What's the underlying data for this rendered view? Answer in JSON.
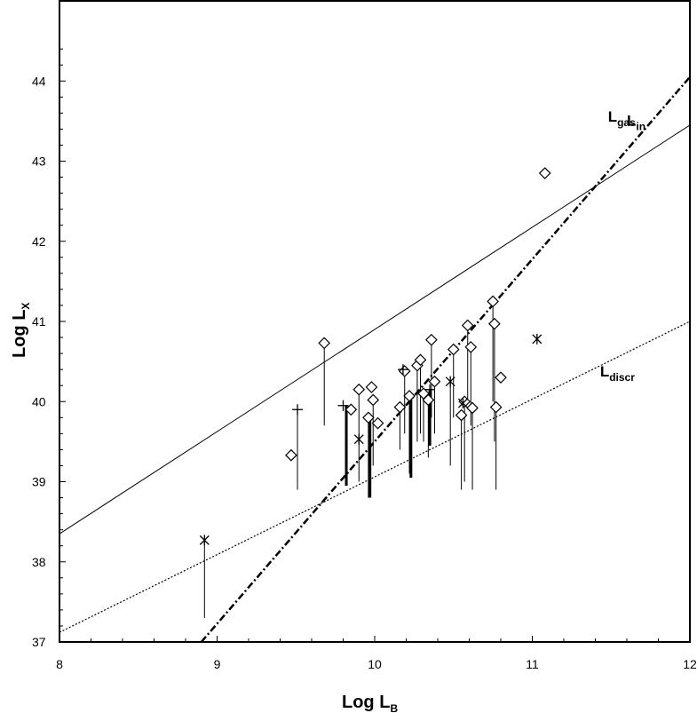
{
  "chart_data": {
    "type": "scatter",
    "xlabel": "Log L",
    "xlabel_sub": "B",
    "ylabel": "Log L",
    "ylabel_sub": "X",
    "xlim": [
      8,
      12
    ],
    "ylim": [
      37,
      45
    ],
    "xticks": [
      "8",
      "9",
      "10",
      "11",
      "12"
    ],
    "yticks": [
      "37",
      "38",
      "39",
      "40",
      "41",
      "42",
      "43",
      "44"
    ],
    "grid": false,
    "lines": [
      {
        "name": "L",
        "sub": "gas",
        "style": "dashdot",
        "points": [
          [
            8.9,
            37.0
          ],
          [
            12.0,
            44.05
          ]
        ]
      },
      {
        "name": "L",
        "sub": "in",
        "style": "solid",
        "points": [
          [
            8.0,
            38.35
          ],
          [
            12.0,
            43.45
          ]
        ]
      },
      {
        "name": "L",
        "sub": "discr",
        "style": "dotted",
        "points": [
          [
            8.0,
            37.12
          ],
          [
            12.0,
            41.0
          ]
        ]
      }
    ],
    "diamonds": [
      {
        "x": 9.47,
        "y": 39.33
      },
      {
        "x": 9.68,
        "y": 40.73,
        "low": 39.7
      },
      {
        "x": 9.85,
        "y": 39.9
      },
      {
        "x": 9.9,
        "y": 40.15,
        "low": 39.0
      },
      {
        "x": 9.96,
        "y": 39.8,
        "low": 38.8
      },
      {
        "x": 9.98,
        "y": 40.18
      },
      {
        "x": 9.99,
        "y": 40.02,
        "low": 39.2
      },
      {
        "x": 10.02,
        "y": 39.73
      },
      {
        "x": 10.16,
        "y": 39.93,
        "low": 39.4
      },
      {
        "x": 10.19,
        "y": 40.38,
        "low": 39.6
      },
      {
        "x": 10.22,
        "y": 40.07,
        "low": 39.1
      },
      {
        "x": 10.27,
        "y": 40.45,
        "low": 39.5
      },
      {
        "x": 10.29,
        "y": 40.52,
        "low": 39.6
      },
      {
        "x": 10.31,
        "y": 40.1,
        "low": 39.5
      },
      {
        "x": 10.34,
        "y": 40.02,
        "low": 39.3
      },
      {
        "x": 10.36,
        "y": 40.77,
        "low": 39.8
      },
      {
        "x": 10.38,
        "y": 40.25,
        "low": 39.6
      },
      {
        "x": 10.5,
        "y": 40.65,
        "low": 39.8
      },
      {
        "x": 10.55,
        "y": 39.83,
        "low": 38.9
      },
      {
        "x": 10.57,
        "y": 40.0,
        "low": 39.0
      },
      {
        "x": 10.59,
        "y": 40.95,
        "low": 40.0
      },
      {
        "x": 10.61,
        "y": 40.68,
        "low": 39.7
      },
      {
        "x": 10.62,
        "y": 39.92,
        "low": 38.9
      },
      {
        "x": 10.75,
        "y": 41.25,
        "low": 40.0
      },
      {
        "x": 10.76,
        "y": 40.97,
        "low": 39.5
      },
      {
        "x": 10.77,
        "y": 39.93,
        "low": 38.9
      },
      {
        "x": 10.8,
        "y": 40.3
      },
      {
        "x": 11.08,
        "y": 42.85
      }
    ],
    "stars": [
      {
        "x": 8.92,
        "y": 38.27,
        "low": 37.3
      },
      {
        "x": 9.9,
        "y": 39.53
      },
      {
        "x": 10.48,
        "y": 40.25,
        "low": 39.2
      },
      {
        "x": 10.56,
        "y": 39.98
      },
      {
        "x": 11.03,
        "y": 40.78
      }
    ],
    "crosses": [
      {
        "x": 9.51,
        "y": 39.9,
        "low": 38.9
      },
      {
        "x": 9.8,
        "y": 39.95
      },
      {
        "x": 10.18,
        "y": 40.4
      },
      {
        "x": 10.35,
        "y": 40.15
      }
    ],
    "thick_bars": [
      {
        "x": 9.82,
        "top": 39.95,
        "low": 38.95
      },
      {
        "x": 9.97,
        "top": 39.8,
        "low": 38.8
      },
      {
        "x": 10.23,
        "top": 40.05,
        "low": 39.05
      },
      {
        "x": 10.35,
        "top": 40.15,
        "low": 39.45
      }
    ]
  }
}
